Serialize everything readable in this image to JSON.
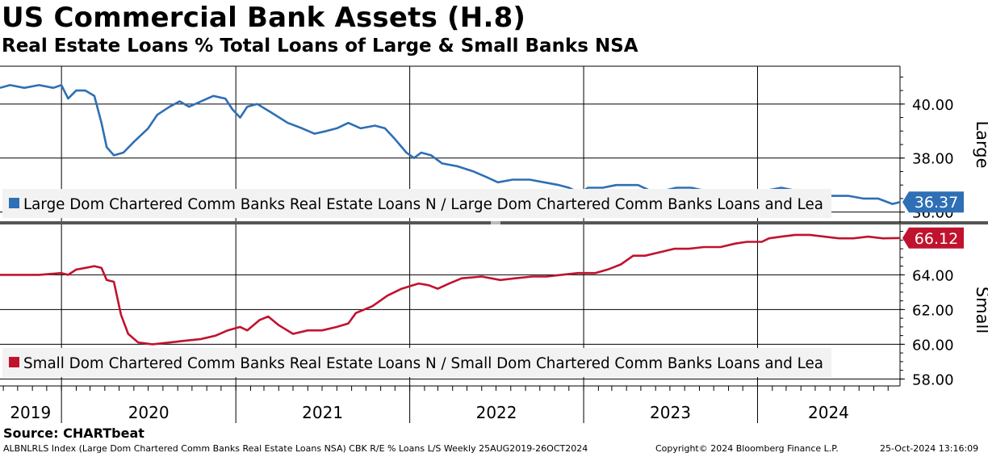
{
  "title": "US Commercial Bank Assets (H.8)",
  "subtitle": "Real Estate Loans % Total Loans of Large & Small Banks NSA",
  "source": "Source: CHARTbeat",
  "footer": {
    "left": "ALBNLRLS Index (Large Dom Chartered Comm Banks Real Estate Loans NSA) CBK R/E % Loans L/S  Weekly 25AUG2019-26OCT2024",
    "copyright": "Copyright© 2024 Bloomberg Finance L.P.",
    "timestamp": "25-Oct-2024 13:16:09"
  },
  "colors": {
    "large": "#2e6fb5",
    "small": "#c0132e",
    "grid": "#000000",
    "legend_bg": "#f2f2f2"
  },
  "chart_data": [
    {
      "type": "line",
      "panel": "top",
      "axis_title": "Large",
      "y_ticks": [
        "40.00",
        "38.00",
        "36.00"
      ],
      "ylim": [
        35.6,
        41.4
      ],
      "last_value_label": "36.37",
      "x_tick_labels": [
        "2019",
        "2020",
        "2021",
        "2022",
        "2023",
        "2024"
      ],
      "x_range": [
        "2019-08-25",
        "2024-10-26"
      ],
      "series": [
        {
          "name": "Large Dom Chartered Comm Banks Real Estate Loans N / Large Dom Chartered Comm Banks Loans and Lea",
          "color": "#2e6fb5",
          "points": [
            [
              "2019-08-25",
              40.6
            ],
            [
              "2019-09-15",
              40.7
            ],
            [
              "2019-10-15",
              40.6
            ],
            [
              "2019-11-15",
              40.7
            ],
            [
              "2019-12-15",
              40.6
            ],
            [
              "2020-01-01",
              40.7
            ],
            [
              "2020-01-15",
              40.2
            ],
            [
              "2020-02-01",
              40.5
            ],
            [
              "2020-02-20",
              40.5
            ],
            [
              "2020-03-10",
              40.3
            ],
            [
              "2020-03-25",
              39.3
            ],
            [
              "2020-04-05",
              38.4
            ],
            [
              "2020-04-20",
              38.1
            ],
            [
              "2020-05-10",
              38.2
            ],
            [
              "2020-06-01",
              38.6
            ],
            [
              "2020-07-01",
              39.1
            ],
            [
              "2020-07-20",
              39.6
            ],
            [
              "2020-08-15",
              39.9
            ],
            [
              "2020-09-05",
              40.1
            ],
            [
              "2020-09-25",
              39.9
            ],
            [
              "2020-10-20",
              40.1
            ],
            [
              "2020-11-15",
              40.3
            ],
            [
              "2020-12-10",
              40.2
            ],
            [
              "2020-12-25",
              39.8
            ],
            [
              "2021-01-10",
              39.5
            ],
            [
              "2021-01-25",
              39.9
            ],
            [
              "2021-02-15",
              40.0
            ],
            [
              "2021-03-15",
              39.7
            ],
            [
              "2021-04-20",
              39.3
            ],
            [
              "2021-05-20",
              39.1
            ],
            [
              "2021-06-15",
              38.9
            ],
            [
              "2021-07-10",
              39.0
            ],
            [
              "2021-08-01",
              39.1
            ],
            [
              "2021-08-25",
              39.3
            ],
            [
              "2021-09-20",
              39.1
            ],
            [
              "2021-10-20",
              39.2
            ],
            [
              "2021-11-10",
              39.1
            ],
            [
              "2021-12-01",
              38.7
            ],
            [
              "2021-12-25",
              38.2
            ],
            [
              "2022-01-10",
              38.0
            ],
            [
              "2022-01-25",
              38.2
            ],
            [
              "2022-02-15",
              38.1
            ],
            [
              "2022-03-10",
              37.8
            ],
            [
              "2022-04-10",
              37.7
            ],
            [
              "2022-05-15",
              37.5
            ],
            [
              "2022-06-10",
              37.3
            ],
            [
              "2022-07-05",
              37.1
            ],
            [
              "2022-08-05",
              37.2
            ],
            [
              "2022-09-10",
              37.2
            ],
            [
              "2022-10-10",
              37.1
            ],
            [
              "2022-11-10",
              37.0
            ],
            [
              "2022-12-01",
              36.9
            ],
            [
              "2022-12-25",
              36.7
            ],
            [
              "2023-01-10",
              36.9
            ],
            [
              "2023-02-10",
              36.9
            ],
            [
              "2023-03-10",
              37.0
            ],
            [
              "2023-04-01",
              37.0
            ],
            [
              "2023-04-25",
              37.0
            ],
            [
              "2023-05-20",
              36.8
            ],
            [
              "2023-06-20",
              36.8
            ],
            [
              "2023-07-15",
              36.9
            ],
            [
              "2023-08-15",
              36.9
            ],
            [
              "2023-09-10",
              36.8
            ],
            [
              "2023-10-10",
              36.7
            ],
            [
              "2023-11-10",
              36.7
            ],
            [
              "2023-12-10",
              36.6
            ],
            [
              "2023-12-28",
              36.8
            ],
            [
              "2024-01-20",
              36.8
            ],
            [
              "2024-02-20",
              36.9
            ],
            [
              "2024-03-20",
              36.8
            ],
            [
              "2024-04-20",
              36.7
            ],
            [
              "2024-05-20",
              36.6
            ],
            [
              "2024-06-15",
              36.6
            ],
            [
              "2024-07-10",
              36.6
            ],
            [
              "2024-08-10",
              36.5
            ],
            [
              "2024-09-10",
              36.5
            ],
            [
              "2024-10-10",
              36.3
            ],
            [
              "2024-10-26",
              36.37
            ]
          ]
        }
      ]
    },
    {
      "type": "line",
      "panel": "bottom",
      "axis_title": "Small",
      "y_ticks": [
        "64.00",
        "62.00",
        "60.00",
        "58.00"
      ],
      "ylim": [
        57.6,
        66.9
      ],
      "last_value_label": "66.12",
      "x_tick_labels": [
        "2019",
        "2020",
        "2021",
        "2022",
        "2023",
        "2024"
      ],
      "x_range": [
        "2019-08-25",
        "2024-10-26"
      ],
      "series": [
        {
          "name": "Small Dom Chartered Comm Banks Real Estate Loans N / Small Dom Chartered Comm Banks Loans and Lea",
          "color": "#c0132e",
          "points": [
            [
              "2019-08-25",
              64.0
            ],
            [
              "2019-10-01",
              64.0
            ],
            [
              "2019-11-15",
              64.0
            ],
            [
              "2020-01-01",
              64.1
            ],
            [
              "2020-01-15",
              64.0
            ],
            [
              "2020-02-01",
              64.3
            ],
            [
              "2020-02-20",
              64.4
            ],
            [
              "2020-03-10",
              64.5
            ],
            [
              "2020-03-25",
              64.4
            ],
            [
              "2020-04-05",
              63.7
            ],
            [
              "2020-04-20",
              63.6
            ],
            [
              "2020-05-05",
              61.7
            ],
            [
              "2020-05-20",
              60.6
            ],
            [
              "2020-06-10",
              60.1
            ],
            [
              "2020-07-10",
              60.0
            ],
            [
              "2020-08-15",
              60.1
            ],
            [
              "2020-09-15",
              60.2
            ],
            [
              "2020-10-20",
              60.3
            ],
            [
              "2020-11-20",
              60.5
            ],
            [
              "2020-12-15",
              60.8
            ],
            [
              "2021-01-10",
              61.0
            ],
            [
              "2021-01-25",
              60.8
            ],
            [
              "2021-02-20",
              61.4
            ],
            [
              "2021-03-10",
              61.6
            ],
            [
              "2021-04-01",
              61.1
            ],
            [
              "2021-05-01",
              60.6
            ],
            [
              "2021-06-01",
              60.8
            ],
            [
              "2021-07-01",
              60.8
            ],
            [
              "2021-08-01",
              61.0
            ],
            [
              "2021-08-25",
              61.2
            ],
            [
              "2021-09-10",
              61.8
            ],
            [
              "2021-10-15",
              62.2
            ],
            [
              "2021-11-15",
              62.8
            ],
            [
              "2021-12-15",
              63.2
            ],
            [
              "2022-01-20",
              63.5
            ],
            [
              "2022-02-10",
              63.4
            ],
            [
              "2022-03-01",
              63.2
            ],
            [
              "2022-03-25",
              63.5
            ],
            [
              "2022-04-20",
              63.8
            ],
            [
              "2022-06-01",
              63.9
            ],
            [
              "2022-07-10",
              63.7
            ],
            [
              "2022-08-10",
              63.8
            ],
            [
              "2022-09-15",
              63.9
            ],
            [
              "2022-10-15",
              63.9
            ],
            [
              "2022-11-15",
              64.0
            ],
            [
              "2022-12-20",
              64.1
            ],
            [
              "2023-01-25",
              64.1
            ],
            [
              "2023-02-20",
              64.3
            ],
            [
              "2023-03-20",
              64.6
            ],
            [
              "2023-04-15",
              65.1
            ],
            [
              "2023-05-10",
              65.1
            ],
            [
              "2023-06-10",
              65.3
            ],
            [
              "2023-07-10",
              65.5
            ],
            [
              "2023-08-10",
              65.5
            ],
            [
              "2023-09-10",
              65.6
            ],
            [
              "2023-10-15",
              65.6
            ],
            [
              "2023-11-15",
              65.8
            ],
            [
              "2023-12-10",
              65.9
            ],
            [
              "2024-01-10",
              65.9
            ],
            [
              "2024-01-25",
              66.1
            ],
            [
              "2024-02-20",
              66.2
            ],
            [
              "2024-03-20",
              66.3
            ],
            [
              "2024-04-20",
              66.3
            ],
            [
              "2024-05-20",
              66.2
            ],
            [
              "2024-06-20",
              66.1
            ],
            [
              "2024-07-20",
              66.1
            ],
            [
              "2024-08-20",
              66.2
            ],
            [
              "2024-09-20",
              66.1
            ],
            [
              "2024-10-26",
              66.12
            ]
          ]
        }
      ]
    }
  ]
}
